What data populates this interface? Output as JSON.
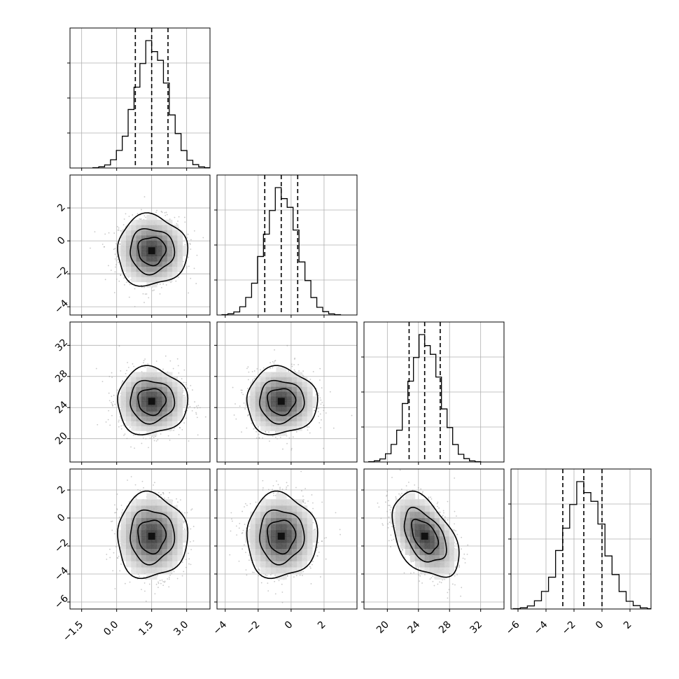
{
  "chart_data": {
    "type": "corner",
    "n_params": 4,
    "params": [
      {
        "mean": 1.5,
        "sd": 0.7,
        "range": [
          -2.0,
          4.0
        ],
        "ticks": [
          -1.5,
          0.0,
          1.5,
          3.0
        ],
        "tick_labels": [
          "−1.5",
          "0.0",
          "1.5",
          "3.0"
        ],
        "quantiles": [
          0.8,
          1.5,
          2.2
        ],
        "hist_peak": 0.91
      },
      {
        "mean": -0.6,
        "sd": 1.0,
        "range": [
          -4.5,
          4.0
        ],
        "ticks": [
          -4,
          -2,
          0,
          2
        ],
        "tick_labels": [
          "−4",
          "−2",
          "0",
          "2"
        ],
        "quantiles": [
          -1.6,
          -0.6,
          0.4
        ],
        "hist_peak": 0.91
      },
      {
        "mean": 24.8,
        "sd": 2.0,
        "range": [
          17.0,
          35.0
        ],
        "ticks": [
          20,
          24,
          28,
          32
        ],
        "tick_labels": [
          "20",
          "24",
          "28",
          "32"
        ],
        "quantiles": [
          22.8,
          24.8,
          26.8
        ],
        "hist_peak": 0.91
      },
      {
        "mean": -1.3,
        "sd": 1.4,
        "range": [
          -6.5,
          3.5
        ],
        "ticks": [
          -6,
          -4,
          -2,
          0,
          2
        ],
        "tick_labels": [
          "−6",
          "−4",
          "−2",
          "0",
          "2"
        ],
        "quantiles": [
          -2.8,
          -1.3,
          0.0
        ],
        "hist_peak": 0.91
      }
    ],
    "correlations": {
      "0-1": 0.0,
      "0-2": 0.0,
      "0-3": 0.0,
      "1-2": 0.0,
      "1-3": 0.0,
      "2-3": -0.45
    },
    "hist_bins": 20,
    "contour_levels": [
      0.3,
      0.6,
      0.9
    ],
    "grid": true,
    "colors": {
      "points": "#9a9a9a",
      "contour": "#000000",
      "hist": "#000000",
      "grid": "#b0b0b0"
    }
  }
}
